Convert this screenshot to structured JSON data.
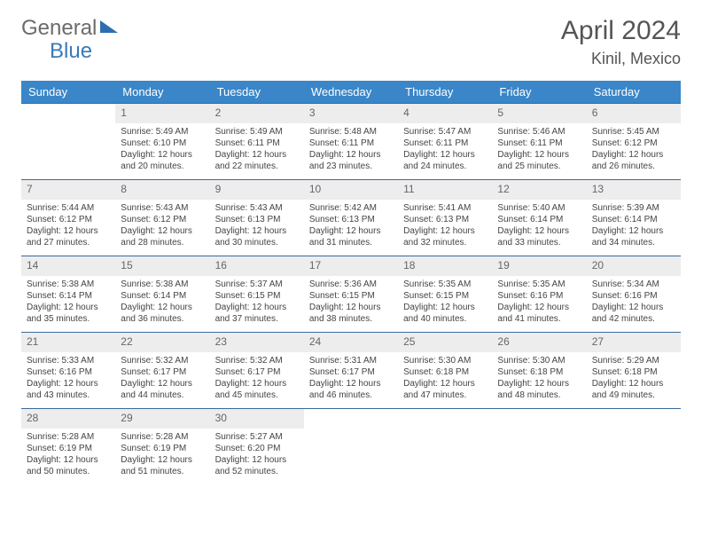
{
  "brand": {
    "part1": "General",
    "part2": "Blue"
  },
  "title": "April 2024",
  "location": "Kinil, Mexico",
  "colors": {
    "header_bg": "#3a86c8",
    "header_text": "#ffffff",
    "daynum_bg": "#ededed",
    "rule": "#3a6a9a",
    "brand_blue": "#3a7ab8",
    "text": "#444444"
  },
  "weekdays": [
    "Sunday",
    "Monday",
    "Tuesday",
    "Wednesday",
    "Thursday",
    "Friday",
    "Saturday"
  ],
  "weeks": [
    [
      null,
      {
        "n": "1",
        "sr": "Sunrise: 5:49 AM",
        "ss": "Sunset: 6:10 PM",
        "d1": "Daylight: 12 hours",
        "d2": "and 20 minutes."
      },
      {
        "n": "2",
        "sr": "Sunrise: 5:49 AM",
        "ss": "Sunset: 6:11 PM",
        "d1": "Daylight: 12 hours",
        "d2": "and 22 minutes."
      },
      {
        "n": "3",
        "sr": "Sunrise: 5:48 AM",
        "ss": "Sunset: 6:11 PM",
        "d1": "Daylight: 12 hours",
        "d2": "and 23 minutes."
      },
      {
        "n": "4",
        "sr": "Sunrise: 5:47 AM",
        "ss": "Sunset: 6:11 PM",
        "d1": "Daylight: 12 hours",
        "d2": "and 24 minutes."
      },
      {
        "n": "5",
        "sr": "Sunrise: 5:46 AM",
        "ss": "Sunset: 6:11 PM",
        "d1": "Daylight: 12 hours",
        "d2": "and 25 minutes."
      },
      {
        "n": "6",
        "sr": "Sunrise: 5:45 AM",
        "ss": "Sunset: 6:12 PM",
        "d1": "Daylight: 12 hours",
        "d2": "and 26 minutes."
      }
    ],
    [
      {
        "n": "7",
        "sr": "Sunrise: 5:44 AM",
        "ss": "Sunset: 6:12 PM",
        "d1": "Daylight: 12 hours",
        "d2": "and 27 minutes."
      },
      {
        "n": "8",
        "sr": "Sunrise: 5:43 AM",
        "ss": "Sunset: 6:12 PM",
        "d1": "Daylight: 12 hours",
        "d2": "and 28 minutes."
      },
      {
        "n": "9",
        "sr": "Sunrise: 5:43 AM",
        "ss": "Sunset: 6:13 PM",
        "d1": "Daylight: 12 hours",
        "d2": "and 30 minutes."
      },
      {
        "n": "10",
        "sr": "Sunrise: 5:42 AM",
        "ss": "Sunset: 6:13 PM",
        "d1": "Daylight: 12 hours",
        "d2": "and 31 minutes."
      },
      {
        "n": "11",
        "sr": "Sunrise: 5:41 AM",
        "ss": "Sunset: 6:13 PM",
        "d1": "Daylight: 12 hours",
        "d2": "and 32 minutes."
      },
      {
        "n": "12",
        "sr": "Sunrise: 5:40 AM",
        "ss": "Sunset: 6:14 PM",
        "d1": "Daylight: 12 hours",
        "d2": "and 33 minutes."
      },
      {
        "n": "13",
        "sr": "Sunrise: 5:39 AM",
        "ss": "Sunset: 6:14 PM",
        "d1": "Daylight: 12 hours",
        "d2": "and 34 minutes."
      }
    ],
    [
      {
        "n": "14",
        "sr": "Sunrise: 5:38 AM",
        "ss": "Sunset: 6:14 PM",
        "d1": "Daylight: 12 hours",
        "d2": "and 35 minutes."
      },
      {
        "n": "15",
        "sr": "Sunrise: 5:38 AM",
        "ss": "Sunset: 6:14 PM",
        "d1": "Daylight: 12 hours",
        "d2": "and 36 minutes."
      },
      {
        "n": "16",
        "sr": "Sunrise: 5:37 AM",
        "ss": "Sunset: 6:15 PM",
        "d1": "Daylight: 12 hours",
        "d2": "and 37 minutes."
      },
      {
        "n": "17",
        "sr": "Sunrise: 5:36 AM",
        "ss": "Sunset: 6:15 PM",
        "d1": "Daylight: 12 hours",
        "d2": "and 38 minutes."
      },
      {
        "n": "18",
        "sr": "Sunrise: 5:35 AM",
        "ss": "Sunset: 6:15 PM",
        "d1": "Daylight: 12 hours",
        "d2": "and 40 minutes."
      },
      {
        "n": "19",
        "sr": "Sunrise: 5:35 AM",
        "ss": "Sunset: 6:16 PM",
        "d1": "Daylight: 12 hours",
        "d2": "and 41 minutes."
      },
      {
        "n": "20",
        "sr": "Sunrise: 5:34 AM",
        "ss": "Sunset: 6:16 PM",
        "d1": "Daylight: 12 hours",
        "d2": "and 42 minutes."
      }
    ],
    [
      {
        "n": "21",
        "sr": "Sunrise: 5:33 AM",
        "ss": "Sunset: 6:16 PM",
        "d1": "Daylight: 12 hours",
        "d2": "and 43 minutes."
      },
      {
        "n": "22",
        "sr": "Sunrise: 5:32 AM",
        "ss": "Sunset: 6:17 PM",
        "d1": "Daylight: 12 hours",
        "d2": "and 44 minutes."
      },
      {
        "n": "23",
        "sr": "Sunrise: 5:32 AM",
        "ss": "Sunset: 6:17 PM",
        "d1": "Daylight: 12 hours",
        "d2": "and 45 minutes."
      },
      {
        "n": "24",
        "sr": "Sunrise: 5:31 AM",
        "ss": "Sunset: 6:17 PM",
        "d1": "Daylight: 12 hours",
        "d2": "and 46 minutes."
      },
      {
        "n": "25",
        "sr": "Sunrise: 5:30 AM",
        "ss": "Sunset: 6:18 PM",
        "d1": "Daylight: 12 hours",
        "d2": "and 47 minutes."
      },
      {
        "n": "26",
        "sr": "Sunrise: 5:30 AM",
        "ss": "Sunset: 6:18 PM",
        "d1": "Daylight: 12 hours",
        "d2": "and 48 minutes."
      },
      {
        "n": "27",
        "sr": "Sunrise: 5:29 AM",
        "ss": "Sunset: 6:18 PM",
        "d1": "Daylight: 12 hours",
        "d2": "and 49 minutes."
      }
    ],
    [
      {
        "n": "28",
        "sr": "Sunrise: 5:28 AM",
        "ss": "Sunset: 6:19 PM",
        "d1": "Daylight: 12 hours",
        "d2": "and 50 minutes."
      },
      {
        "n": "29",
        "sr": "Sunrise: 5:28 AM",
        "ss": "Sunset: 6:19 PM",
        "d1": "Daylight: 12 hours",
        "d2": "and 51 minutes."
      },
      {
        "n": "30",
        "sr": "Sunrise: 5:27 AM",
        "ss": "Sunset: 6:20 PM",
        "d1": "Daylight: 12 hours",
        "d2": "and 52 minutes."
      },
      null,
      null,
      null,
      null
    ]
  ]
}
